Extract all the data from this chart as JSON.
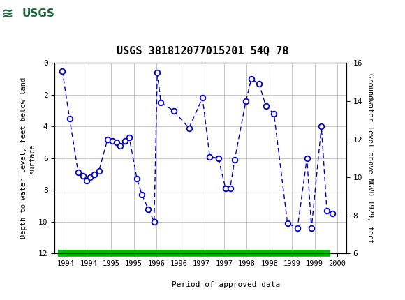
{
  "title": "USGS 381812077015201 54Q 78",
  "ylabel_left": "Depth to water level, feet below land\nsurface",
  "ylabel_right": "Groundwater level above NGVD 1929, feet",
  "left_yticks": [
    0,
    2,
    4,
    6,
    8,
    10,
    12
  ],
  "right_yticks": [
    6,
    8,
    10,
    12,
    14,
    16
  ],
  "xlim_min": 1993.75,
  "xlim_max": 2000.2,
  "xtick_positions": [
    1994,
    1994.5,
    1995,
    1995.5,
    1996,
    1996.5,
    1997,
    1997.5,
    1998,
    1998.5,
    1999,
    1999.5,
    2000
  ],
  "xticklabels": [
    "1994",
    "1994",
    "1995",
    "1995",
    "1996",
    "1996",
    "1997",
    "1997",
    "1998",
    "1998",
    "1999",
    "1999",
    "2000"
  ],
  "header_color": "#1b6b3a",
  "header_text_color": "#ffffff",
  "line_color": "#0000cc",
  "marker_facecolor": "#ffffff",
  "marker_edgecolor": "#0000cc",
  "grid_color": "#bbbbbb",
  "plot_bg_color": "#ffffff",
  "fig_bg_color": "#ffffff",
  "legend_bar_color": "#00bb00",
  "x_data": [
    1993.92,
    1994.08,
    1994.27,
    1994.38,
    1994.46,
    1994.54,
    1994.63,
    1994.73,
    1994.92,
    1995.02,
    1995.12,
    1995.2,
    1995.3,
    1995.4,
    1995.57,
    1995.68,
    1995.82,
    1995.95,
    1996.02,
    1996.1,
    1996.38,
    1996.72,
    1997.02,
    1997.18,
    1997.37,
    1997.53,
    1997.63,
    1997.73,
    1997.98,
    1998.1,
    1998.27,
    1998.42,
    1998.6,
    1998.9,
    1999.12,
    1999.33,
    1999.43,
    1999.65,
    1999.77,
    1999.9
  ],
  "y_depth": [
    0.5,
    3.5,
    6.9,
    7.1,
    7.4,
    7.2,
    7.0,
    6.8,
    4.8,
    4.9,
    5.0,
    5.2,
    4.9,
    4.7,
    7.3,
    8.3,
    9.2,
    10.0,
    0.6,
    2.5,
    3.0,
    4.1,
    2.2,
    5.9,
    6.0,
    7.9,
    7.9,
    6.1,
    2.4,
    1.0,
    1.3,
    2.7,
    3.2,
    10.1,
    10.4,
    6.0,
    10.4,
    4.0,
    9.3,
    9.5
  ]
}
